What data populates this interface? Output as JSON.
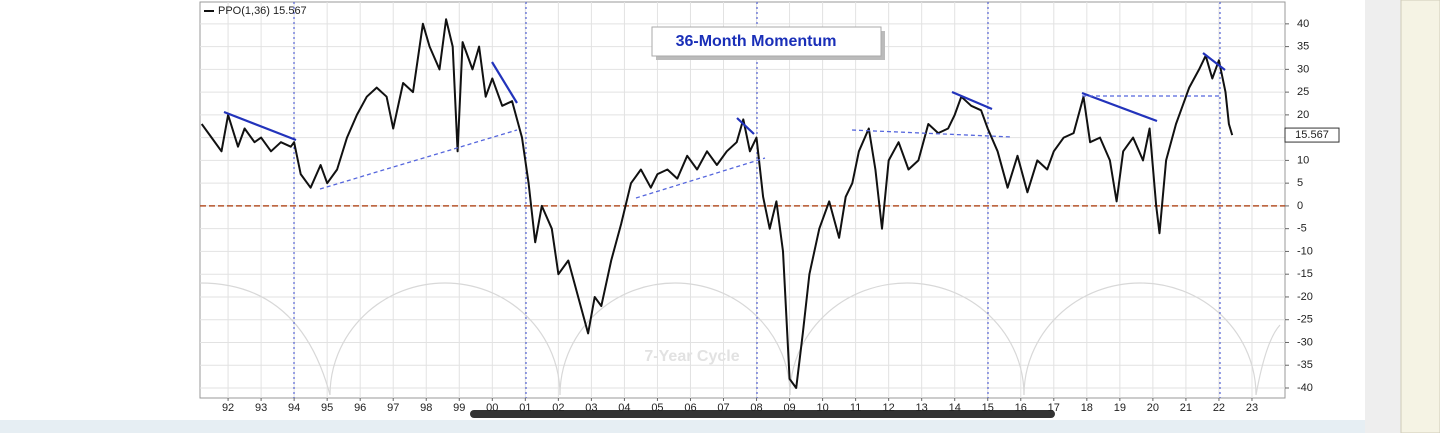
{
  "chart_data": {
    "type": "line",
    "title": "36-Month Momentum",
    "annotation": "7-Year Cycle",
    "series": [
      {
        "name": "PPO(1,36)",
        "color": "#111111",
        "x": [
          1991.2,
          1991.5,
          1991.8,
          1992.0,
          1992.3,
          1992.5,
          1992.8,
          1993.0,
          1993.3,
          1993.6,
          1993.9,
          1994.0,
          1994.2,
          1994.5,
          1994.8,
          1995.0,
          1995.3,
          1995.6,
          1995.9,
          1996.2,
          1996.5,
          1996.8,
          1997.0,
          1997.3,
          1997.6,
          1997.9,
          1998.1,
          1998.4,
          1998.6,
          1998.8,
          1998.95,
          1999.1,
          1999.4,
          1999.6,
          1999.8,
          2000.0,
          2000.3,
          2000.6,
          2000.9,
          2001.1,
          2001.3,
          2001.5,
          2001.8,
          2002.0,
          2002.3,
          2002.6,
          2002.9,
          2003.1,
          2003.3,
          2003.6,
          2003.9,
          2004.2,
          2004.5,
          2004.8,
          2005.0,
          2005.3,
          2005.6,
          2005.9,
          2006.2,
          2006.5,
          2006.8,
          2007.1,
          2007.4,
          2007.6,
          2007.8,
          2008.0,
          2008.2,
          2008.4,
          2008.6,
          2008.8,
          2009.0,
          2009.2,
          2009.4,
          2009.6,
          2009.9,
          2010.2,
          2010.5,
          2010.7,
          2010.9,
          2011.1,
          2011.4,
          2011.6,
          2011.8,
          2012.0,
          2012.3,
          2012.6,
          2012.9,
          2013.2,
          2013.5,
          2013.8,
          2014.0,
          2014.2,
          2014.5,
          2014.8,
          2015.0,
          2015.3,
          2015.6,
          2015.9,
          2016.2,
          2016.5,
          2016.8,
          2017.0,
          2017.3,
          2017.6,
          2017.9,
          2018.1,
          2018.4,
          2018.7,
          2018.9,
          2019.1,
          2019.4,
          2019.7,
          2019.9,
          2020.1,
          2020.2,
          2020.4,
          2020.7,
          2020.9,
          2021.1,
          2021.4,
          2021.6,
          2021.8,
          2022.0,
          2022.2,
          2022.3,
          2022.4
        ],
        "values": [
          18,
          15,
          12,
          20,
          13,
          17,
          14,
          15,
          12,
          14,
          13,
          14,
          7,
          4,
          9,
          5,
          8,
          15,
          20,
          24,
          26,
          24,
          17,
          27,
          25,
          40,
          35,
          30,
          41,
          35,
          12,
          36,
          30,
          35,
          24,
          28,
          22,
          23,
          15,
          5,
          -8,
          0,
          -5,
          -15,
          -12,
          -20,
          -28,
          -20,
          -22,
          -12,
          -4,
          5,
          8,
          4,
          7,
          8,
          6,
          11,
          8,
          12,
          9,
          12,
          14,
          19,
          12,
          15,
          2,
          -5,
          1,
          -10,
          -38,
          -40,
          -28,
          -15,
          -5,
          1,
          -7,
          2,
          5,
          12,
          17,
          8,
          -5,
          10,
          14,
          8,
          10,
          18,
          16,
          17,
          20,
          24,
          22,
          21,
          17,
          12,
          4,
          11,
          3,
          10,
          8,
          12,
          15,
          16,
          24,
          14,
          15,
          10,
          1,
          12,
          15,
          10,
          17,
          0,
          -6,
          10,
          18,
          22,
          26,
          30,
          33,
          28,
          32,
          25,
          18,
          15.567
        ]
      }
    ],
    "reference_lines": [
      0
    ],
    "xlim": [
      1991.15,
      2024
    ],
    "xticks": [
      {
        "value": 1992,
        "label": "92"
      },
      {
        "value": 1993,
        "label": "93"
      },
      {
        "value": 1994,
        "label": "94"
      },
      {
        "value": 1995,
        "label": "95"
      },
      {
        "value": 1996,
        "label": "96"
      },
      {
        "value": 1997,
        "label": "97"
      },
      {
        "value": 1998,
        "label": "98"
      },
      {
        "value": 1999,
        "label": "99"
      },
      {
        "value": 2000,
        "label": "00"
      },
      {
        "value": 2001,
        "label": "01"
      },
      {
        "value": 2002,
        "label": "02"
      },
      {
        "value": 2003,
        "label": "03"
      },
      {
        "value": 2004,
        "label": "04"
      },
      {
        "value": 2005,
        "label": "05"
      },
      {
        "value": 2006,
        "label": "06"
      },
      {
        "value": 2007,
        "label": "07"
      },
      {
        "value": 2008,
        "label": "08"
      },
      {
        "value": 2009,
        "label": "09"
      },
      {
        "value": 2010,
        "label": "10"
      },
      {
        "value": 2011,
        "label": "11"
      },
      {
        "value": 2012,
        "label": "12"
      },
      {
        "value": 2013,
        "label": "13"
      },
      {
        "value": 2014,
        "label": "14"
      },
      {
        "value": 2015,
        "label": "15"
      },
      {
        "value": 2016,
        "label": "16"
      },
      {
        "value": 2017,
        "label": "17"
      },
      {
        "value": 2018,
        "label": "18"
      },
      {
        "value": 2019,
        "label": "19"
      },
      {
        "value": 2020,
        "label": "20"
      },
      {
        "value": 2021,
        "label": "21"
      },
      {
        "value": 2022,
        "label": "22"
      },
      {
        "value": 2023,
        "label": "23"
      }
    ],
    "ylim": [
      -42.2,
      44.8
    ],
    "yticks": [
      40,
      35,
      30,
      25,
      20,
      15,
      10,
      5,
      0,
      -5,
      -10,
      -15,
      -20,
      -25,
      -30,
      -35,
      -40
    ],
    "grid": true
  }
}
